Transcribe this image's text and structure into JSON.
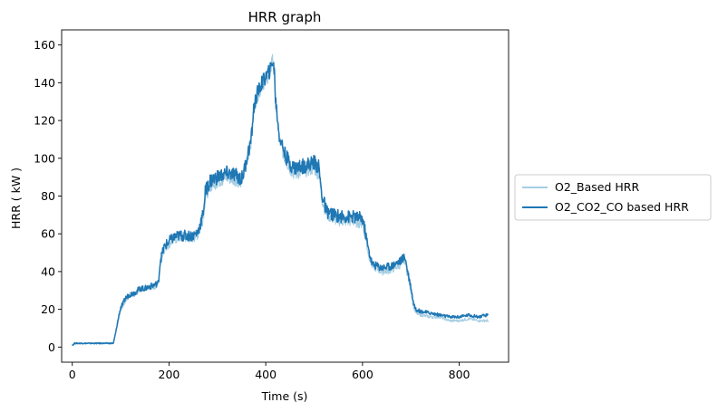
{
  "chart_data": {
    "type": "line",
    "title": "HRR graph",
    "xlabel": "Time (s)",
    "ylabel": "HRR ( kW )",
    "xlim": [
      -22,
      902
    ],
    "ylim": [
      -8,
      168
    ],
    "xticks": [
      0,
      200,
      400,
      600,
      800
    ],
    "yticks": [
      0,
      20,
      40,
      60,
      80,
      100,
      120,
      140,
      160
    ],
    "grid": false,
    "legend_position": "center-left-outside",
    "series": [
      {
        "name": "O2_Based HRR",
        "color": "#a6cee3",
        "points": [
          [
            0,
            1
          ],
          [
            5,
            2
          ],
          [
            20,
            2
          ],
          [
            40,
            2
          ],
          [
            60,
            2
          ],
          [
            80,
            2
          ],
          [
            85,
            2
          ],
          [
            90,
            8
          ],
          [
            95,
            14
          ],
          [
            100,
            20
          ],
          [
            105,
            22
          ],
          [
            110,
            25
          ],
          [
            120,
            28
          ],
          [
            130,
            28
          ],
          [
            140,
            30
          ],
          [
            150,
            31
          ],
          [
            160,
            32
          ],
          [
            170,
            32
          ],
          [
            178,
            34
          ],
          [
            182,
            45
          ],
          [
            190,
            52
          ],
          [
            200,
            55
          ],
          [
            210,
            57
          ],
          [
            220,
            58
          ],
          [
            230,
            58
          ],
          [
            240,
            58
          ],
          [
            250,
            58
          ],
          [
            260,
            60
          ],
          [
            270,
            68
          ],
          [
            275,
            80
          ],
          [
            285,
            86
          ],
          [
            300,
            88
          ],
          [
            320,
            90
          ],
          [
            340,
            89
          ],
          [
            350,
            88
          ],
          [
            355,
            92
          ],
          [
            360,
            98
          ],
          [
            370,
            110
          ],
          [
            375,
            126
          ],
          [
            382,
            133
          ],
          [
            390,
            138
          ],
          [
            400,
            142
          ],
          [
            410,
            146
          ],
          [
            413,
            154
          ],
          [
            418,
            145
          ],
          [
            420,
            130
          ],
          [
            428,
            110
          ],
          [
            440,
            100
          ],
          [
            450,
            95
          ],
          [
            460,
            92
          ],
          [
            480,
            94
          ],
          [
            500,
            95
          ],
          [
            510,
            92
          ],
          [
            515,
            80
          ],
          [
            525,
            71
          ],
          [
            540,
            68
          ],
          [
            560,
            67
          ],
          [
            580,
            67
          ],
          [
            600,
            66
          ],
          [
            605,
            60
          ],
          [
            612,
            50
          ],
          [
            620,
            43
          ],
          [
            640,
            40
          ],
          [
            660,
            41
          ],
          [
            680,
            44
          ],
          [
            688,
            46
          ],
          [
            692,
            40
          ],
          [
            700,
            30
          ],
          [
            705,
            22
          ],
          [
            710,
            18
          ],
          [
            720,
            17
          ],
          [
            740,
            16
          ],
          [
            760,
            16
          ],
          [
            780,
            14
          ],
          [
            800,
            14
          ],
          [
            820,
            15
          ],
          [
            840,
            14
          ],
          [
            860,
            14
          ]
        ]
      },
      {
        "name": "O2_CO2_CO based HRR",
        "color": "#1f77b4",
        "points": [
          [
            0,
            1
          ],
          [
            5,
            2
          ],
          [
            20,
            2
          ],
          [
            40,
            2
          ],
          [
            60,
            2
          ],
          [
            80,
            2
          ],
          [
            85,
            2
          ],
          [
            90,
            8
          ],
          [
            95,
            15
          ],
          [
            100,
            21
          ],
          [
            105,
            23
          ],
          [
            110,
            26
          ],
          [
            120,
            28
          ],
          [
            130,
            29
          ],
          [
            140,
            31
          ],
          [
            150,
            31
          ],
          [
            160,
            32
          ],
          [
            170,
            33
          ],
          [
            178,
            34
          ],
          [
            182,
            46
          ],
          [
            190,
            53
          ],
          [
            200,
            56
          ],
          [
            210,
            58
          ],
          [
            220,
            59
          ],
          [
            230,
            59
          ],
          [
            240,
            59
          ],
          [
            250,
            59
          ],
          [
            260,
            61
          ],
          [
            270,
            70
          ],
          [
            275,
            82
          ],
          [
            285,
            88
          ],
          [
            300,
            90
          ],
          [
            320,
            92
          ],
          [
            340,
            91
          ],
          [
            350,
            89
          ],
          [
            355,
            93
          ],
          [
            360,
            99
          ],
          [
            370,
            110
          ],
          [
            375,
            126
          ],
          [
            382,
            134
          ],
          [
            390,
            139
          ],
          [
            400,
            143
          ],
          [
            410,
            147
          ],
          [
            413,
            152
          ],
          [
            418,
            146
          ],
          [
            420,
            132
          ],
          [
            428,
            112
          ],
          [
            440,
            102
          ],
          [
            450,
            97
          ],
          [
            460,
            95
          ],
          [
            480,
            96
          ],
          [
            500,
            98
          ],
          [
            510,
            95
          ],
          [
            515,
            82
          ],
          [
            525,
            72
          ],
          [
            540,
            70
          ],
          [
            560,
            69
          ],
          [
            580,
            69
          ],
          [
            600,
            68
          ],
          [
            605,
            62
          ],
          [
            612,
            52
          ],
          [
            620,
            44
          ],
          [
            640,
            42
          ],
          [
            660,
            43
          ],
          [
            680,
            46
          ],
          [
            688,
            48
          ],
          [
            692,
            42
          ],
          [
            700,
            32
          ],
          [
            705,
            24
          ],
          [
            710,
            20
          ],
          [
            720,
            19
          ],
          [
            740,
            18
          ],
          [
            760,
            17
          ],
          [
            780,
            16
          ],
          [
            800,
            16
          ],
          [
            820,
            17
          ],
          [
            840,
            16
          ],
          [
            860,
            17
          ]
        ]
      }
    ]
  }
}
